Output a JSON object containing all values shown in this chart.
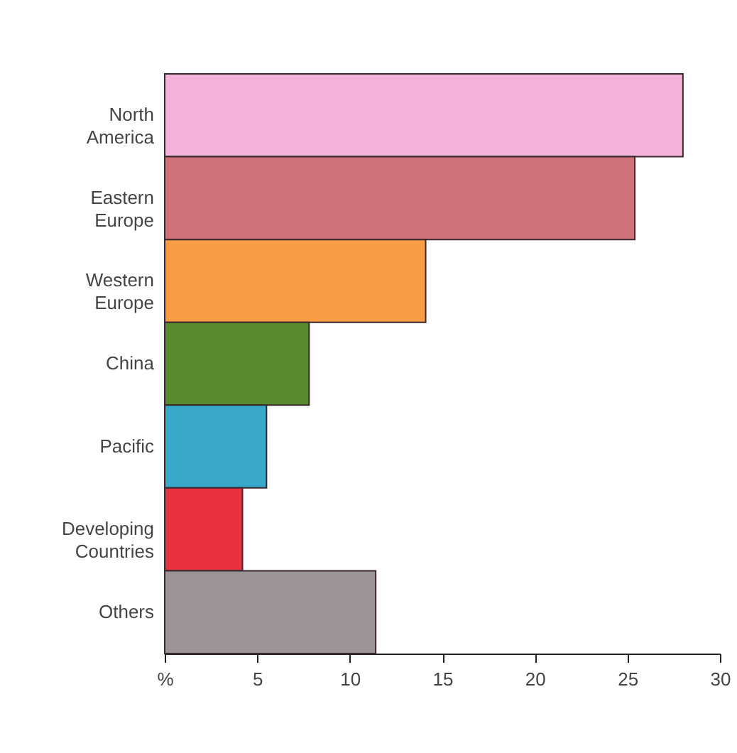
{
  "chart_data": {
    "type": "bar",
    "orientation": "horizontal",
    "categories": [
      "North America",
      "Eastern Europe",
      "Western Europe",
      "China",
      "Pacific",
      "Developing Countries",
      "Others"
    ],
    "values": [
      28.0,
      25.4,
      14.1,
      7.8,
      5.5,
      4.2,
      11.4
    ],
    "colors": [
      "#f4b3d8",
      "#cf7178",
      "#f89c45",
      "#5a8a2e",
      "#3aa8c8",
      "#e8323f",
      "#9a9496"
    ],
    "xlim": [
      0,
      30
    ],
    "xticks": [
      {
        "value": 0,
        "label": "%"
      },
      5,
      10,
      15,
      20,
      25,
      30
    ],
    "grid": false
  }
}
